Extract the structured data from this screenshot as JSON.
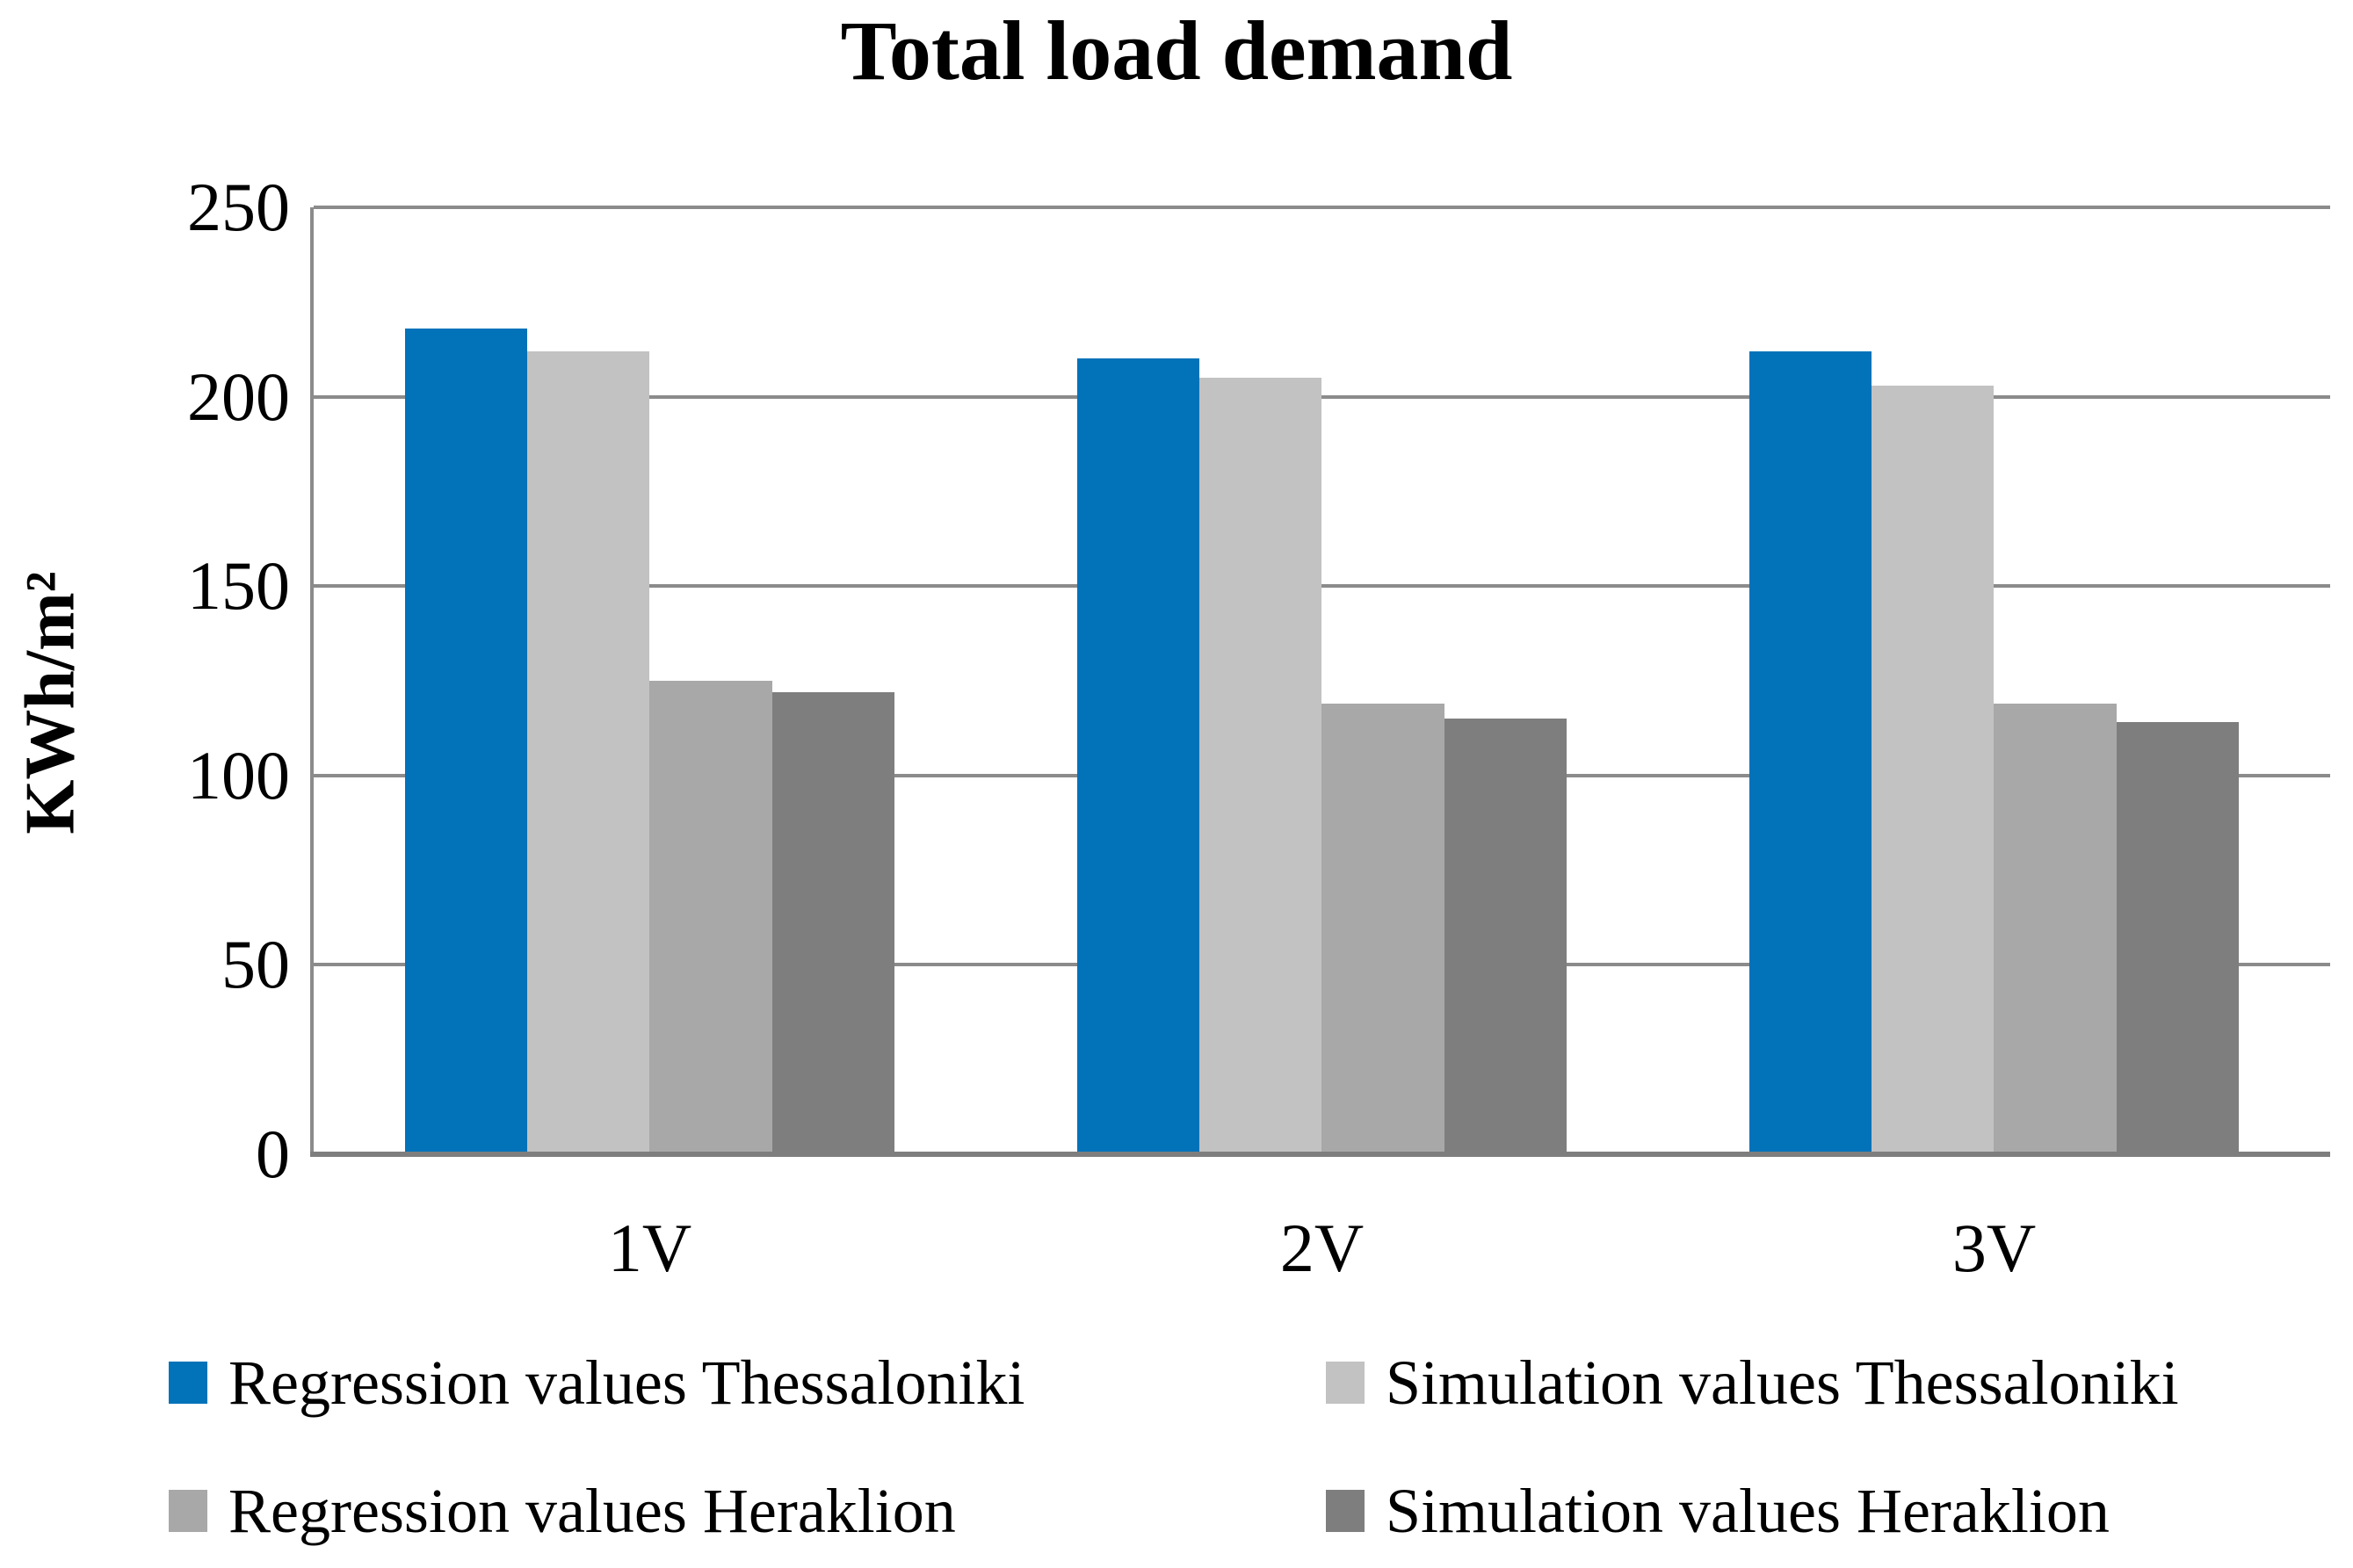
{
  "chart_data": {
    "type": "bar",
    "title": "Total load demand",
    "ylabel": "KWh/m²",
    "categories": [
      "1V",
      "2V",
      "3V"
    ],
    "series": [
      {
        "name": "Regression values Thessaloniki",
        "color": "#0272B9",
        "values": [
          218,
          210,
          212
        ]
      },
      {
        "name": "Simulation values Thessaloniki",
        "color": "#C2C2C2",
        "values": [
          212,
          205,
          203
        ]
      },
      {
        "name": "Regression values Heraklion",
        "color": "#A8A8A8",
        "values": [
          125,
          119,
          119
        ]
      },
      {
        "name": "Simulation values Heraklion",
        "color": "#7E7E7E",
        "values": [
          122,
          115,
          114
        ]
      }
    ],
    "ylim": [
      0,
      250
    ],
    "yticks": [
      250,
      200,
      150,
      100,
      50,
      0
    ],
    "grid": true,
    "grid_color": "#8B8B8B",
    "axis_color": "#7E7E7E",
    "legend_position": "bottom"
  }
}
